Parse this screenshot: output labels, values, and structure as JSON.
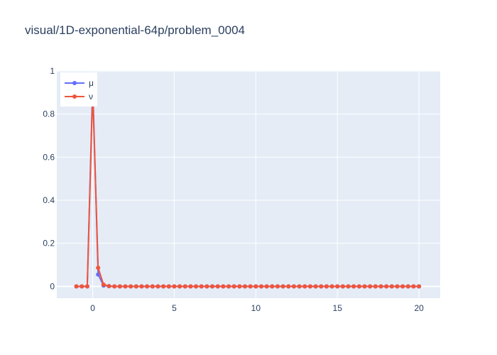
{
  "chart_data": {
    "type": "line",
    "title": "visual/1D-exponential-64p/problem_0004",
    "xlabel": "",
    "ylabel": "",
    "xlim": [
      -2.2,
      21.3
    ],
    "ylim": [
      -0.055,
      1.0
    ],
    "x_ticks": [
      0,
      5,
      10,
      15,
      20
    ],
    "x_tick_labels": [
      "0",
      "5",
      "10",
      "15",
      "20"
    ],
    "y_ticks": [
      0,
      0.2,
      0.4,
      0.6,
      0.8,
      1
    ],
    "y_tick_labels": [
      "0",
      "0.2",
      "0.4",
      "0.6",
      "0.8",
      "1"
    ],
    "grid": true,
    "legend_position": "top-left",
    "x": [
      -1,
      -0.6667,
      -0.3333,
      0,
      0.3333,
      0.6667,
      1,
      1.3333,
      1.6667,
      2,
      2.3333,
      2.6667,
      3,
      3.3333,
      3.6667,
      4,
      4.3333,
      4.6667,
      5,
      5.3333,
      5.6667,
      6,
      6.3333,
      6.6667,
      7,
      7.3333,
      7.6667,
      8,
      8.3333,
      8.6667,
      9,
      9.3333,
      9.6667,
      10,
      10.3333,
      10.6667,
      11,
      11.3333,
      11.6667,
      12,
      12.3333,
      12.6667,
      13,
      13.3333,
      13.6667,
      14,
      14.3333,
      14.6667,
      15,
      15.3333,
      15.6667,
      16,
      16.3333,
      16.6667,
      17,
      17.3333,
      17.6667,
      18,
      18.3333,
      18.6667,
      19,
      19.3333,
      19.6667,
      20
    ],
    "series": [
      {
        "name": "μ",
        "color": "#636efa",
        "values": [
          0,
          0,
          0,
          0.94,
          0.055,
          0.004,
          0.001,
          0,
          0,
          0,
          0,
          0,
          0,
          0,
          0,
          0,
          0,
          0,
          0,
          0,
          0,
          0,
          0,
          0,
          0,
          0,
          0,
          0,
          0,
          0,
          0,
          0,
          0,
          0,
          0,
          0,
          0,
          0,
          0,
          0,
          0,
          0,
          0,
          0,
          0,
          0,
          0,
          0,
          0,
          0,
          0,
          0,
          0,
          0,
          0,
          0,
          0,
          0,
          0,
          0,
          0,
          0,
          0,
          0
        ]
      },
      {
        "name": "ν",
        "color": "#ef553b",
        "values": [
          0,
          0,
          0,
          0.905,
          0.086,
          0.008,
          0.001,
          0,
          0,
          0,
          0,
          0,
          0,
          0,
          0,
          0,
          0,
          0,
          0,
          0,
          0,
          0,
          0,
          0,
          0,
          0,
          0,
          0,
          0,
          0,
          0,
          0,
          0,
          0,
          0,
          0,
          0,
          0,
          0,
          0,
          0,
          0,
          0,
          0,
          0,
          0,
          0,
          0,
          0,
          0,
          0,
          0,
          0,
          0,
          0,
          0,
          0,
          0,
          0,
          0,
          0,
          0,
          0,
          0
        ]
      }
    ]
  },
  "colors": {
    "plot_background": "#e5ecf6",
    "grid": "#ffffff",
    "text": "#2a3f5f"
  }
}
